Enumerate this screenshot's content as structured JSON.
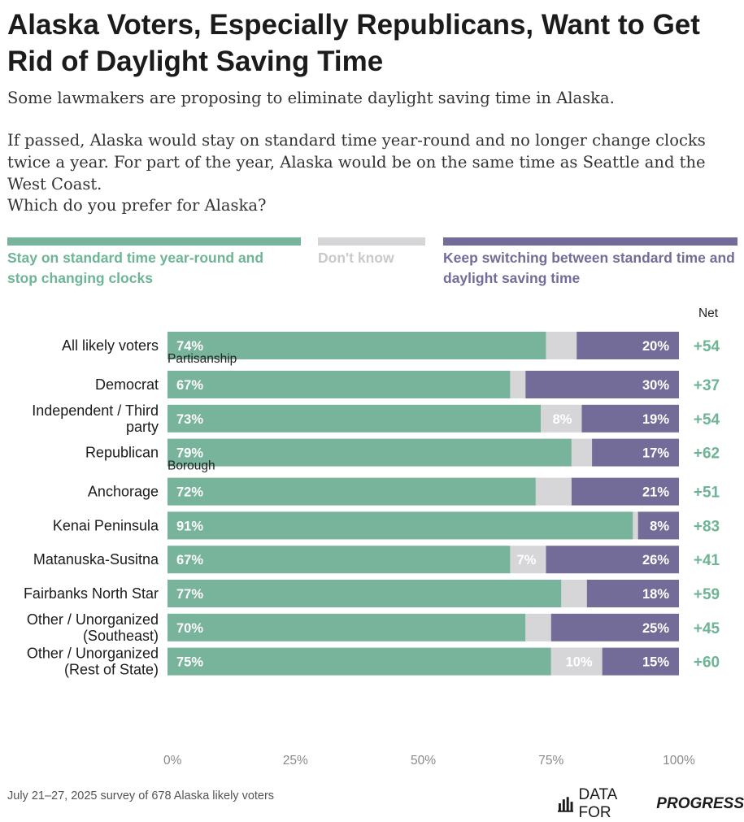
{
  "header": {
    "title": "Alaska Voters, Especially Republicans, Want to Get Rid of Daylight Saving Time",
    "intro": "Some lawmakers are proposing to eliminate daylight saving time in Alaska.",
    "detail": "If passed, Alaska would stay on standard time year-round and no longer change clocks twice a year. For part of the year, Alaska would be on the same time as Seattle and the West Coast.",
    "question": "Which do you prefer for Alaska?"
  },
  "legend": {
    "stay": "Stay on standard time year-round and stop changing clocks",
    "dontknow": "Don't know",
    "switch": "Keep switching between standard time and daylight saving time"
  },
  "colors": {
    "stay": "#78b39c",
    "dontknow": "#d6d6d8",
    "switch": "#736c99",
    "net": "#6db595",
    "legend_dontknow_text": "#c9c9cc"
  },
  "footer": {
    "note": "July 21–27, 2025 survey of 678 Alaska likely voters",
    "brand_a": "DATA FOR",
    "brand_b": "PROGRESS"
  },
  "chart_data": {
    "type": "bar",
    "orientation": "horizontal",
    "stacked": true,
    "net_header": "Net",
    "xlim": [
      0,
      100
    ],
    "xticks": [
      "0%",
      "25%",
      "50%",
      "75%",
      "100%"
    ],
    "groups": [
      {
        "heading": "",
        "rows": [
          {
            "label": "All likely voters",
            "stay": 74,
            "dontknow": 6,
            "switch": 20,
            "stay_label": "74%",
            "dontknow_label": "",
            "switch_label": "20%",
            "net": "+54"
          }
        ]
      },
      {
        "heading": "Partisanship",
        "rows": [
          {
            "label": "Democrat",
            "stay": 67,
            "dontknow": 3,
            "switch": 30,
            "stay_label": "67%",
            "dontknow_label": "",
            "switch_label": "30%",
            "net": "+37"
          },
          {
            "label": "Independent / Third party",
            "stay": 73,
            "dontknow": 8,
            "switch": 19,
            "stay_label": "73%",
            "dontknow_label": "8%",
            "switch_label": "19%",
            "net": "+54"
          },
          {
            "label": "Republican",
            "stay": 79,
            "dontknow": 4,
            "switch": 17,
            "stay_label": "79%",
            "dontknow_label": "",
            "switch_label": "17%",
            "net": "+62"
          }
        ]
      },
      {
        "heading": "Borough",
        "rows": [
          {
            "label": "Anchorage",
            "stay": 72,
            "dontknow": 7,
            "switch": 21,
            "stay_label": "72%",
            "dontknow_label": "",
            "switch_label": "21%",
            "net": "+51"
          },
          {
            "label": "Kenai Peninsula",
            "stay": 91,
            "dontknow": 1,
            "switch": 8,
            "stay_label": "91%",
            "dontknow_label": "",
            "switch_label": "8%",
            "net": "+83"
          },
          {
            "label": "Matanuska-Susitna",
            "stay": 67,
            "dontknow": 7,
            "switch": 26,
            "stay_label": "67%",
            "dontknow_label": "7%",
            "switch_label": "26%",
            "net": "+41"
          },
          {
            "label": "Fairbanks North Star",
            "stay": 77,
            "dontknow": 5,
            "switch": 18,
            "stay_label": "77%",
            "dontknow_label": "",
            "switch_label": "18%",
            "net": "+59"
          },
          {
            "label": "Other / Unorganized (Southeast)",
            "stay": 70,
            "dontknow": 5,
            "switch": 25,
            "stay_label": "70%",
            "dontknow_label": "",
            "switch_label": "25%",
            "net": "+45"
          },
          {
            "label": "Other / Unorganized (Rest of State)",
            "stay": 75,
            "dontknow": 10,
            "switch": 15,
            "stay_label": "75%",
            "dontknow_label": "10%",
            "switch_label": "15%",
            "net": "+60"
          }
        ]
      }
    ]
  }
}
